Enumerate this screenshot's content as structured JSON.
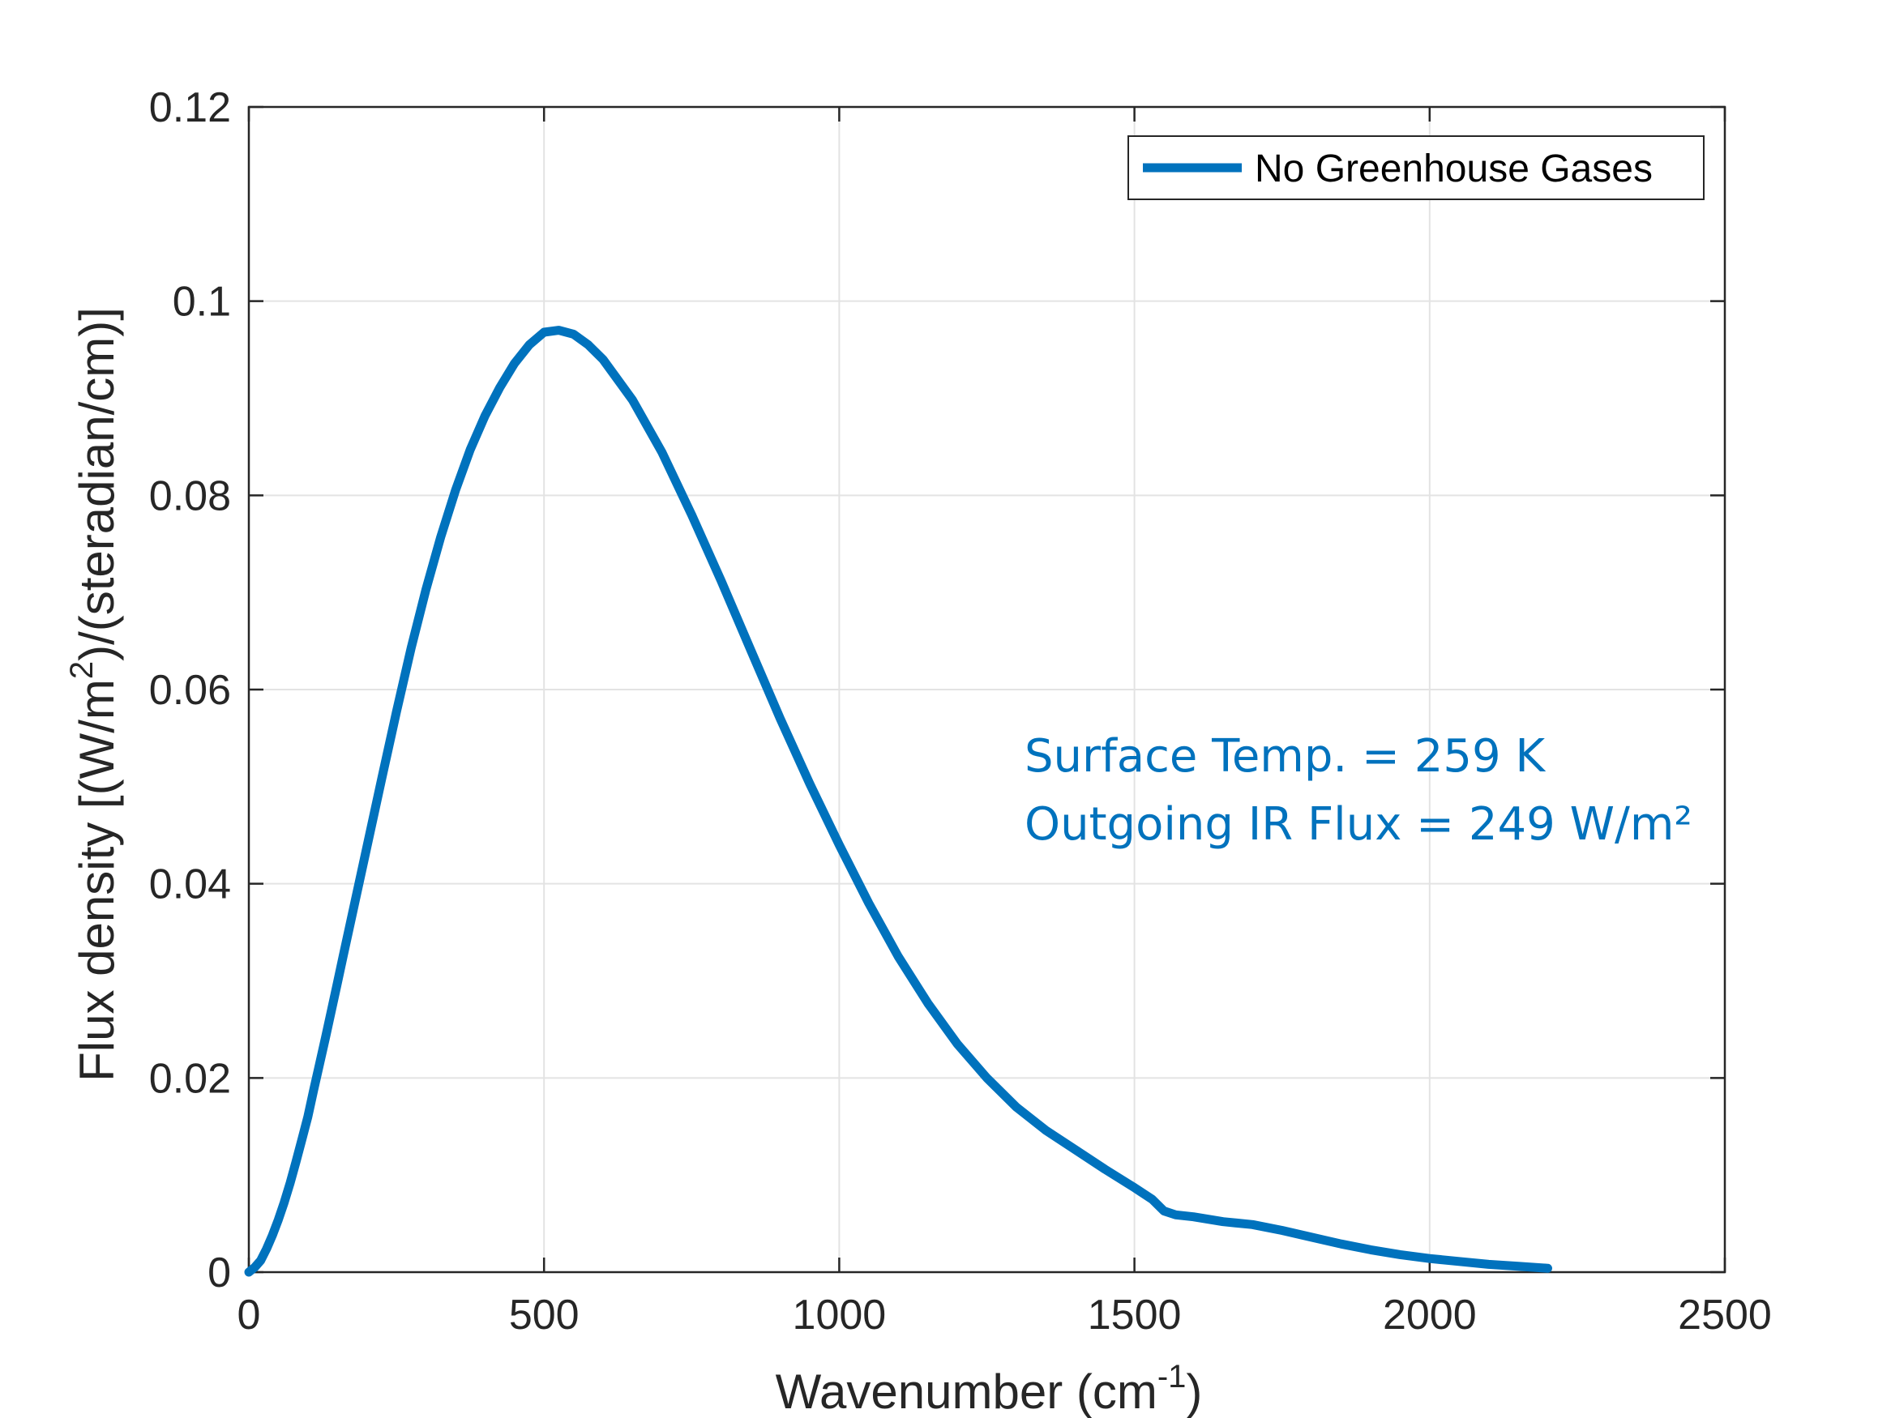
{
  "chart_data": {
    "type": "line",
    "xlabel": {
      "main": "Wavenumber (cm",
      "sup": "-1",
      "end": ")"
    },
    "ylabel": {
      "main": "Flux density [(W/m",
      "sup": "2",
      "end": ")/(steradian/cm)]"
    },
    "xlim": [
      0,
      2500
    ],
    "ylim": [
      0,
      0.12
    ],
    "xticks": [
      0,
      500,
      1000,
      1500,
      2000,
      2500
    ],
    "xtick_labels": [
      "0",
      "500",
      "1000",
      "1500",
      "2000",
      "2500"
    ],
    "yticks": [
      0,
      0.02,
      0.04,
      0.06,
      0.08,
      0.1,
      0.12
    ],
    "ytick_labels": [
      "0",
      "0.02",
      "0.04",
      "0.06",
      "0.08",
      "0.1",
      "0.12"
    ],
    "grid": true,
    "legend_position": "top-right",
    "annotations": [
      "Surface Temp. = 259 K",
      "Outgoing IR Flux = 249 W/m²"
    ],
    "colors": {
      "series": "#0072BD",
      "grid": "#e3e3e3",
      "axis": "#262626",
      "annotation": "#0072BD"
    },
    "series": [
      {
        "name": "No Greenhouse Gases",
        "x": [
          0,
          10,
          20,
          30,
          40,
          50,
          60,
          70,
          80,
          90,
          100,
          110,
          120,
          130,
          140,
          150,
          160,
          170,
          180,
          190,
          200,
          225,
          250,
          275,
          300,
          325,
          350,
          375,
          400,
          425,
          450,
          475,
          500,
          525,
          550,
          575,
          600,
          650,
          700,
          750,
          800,
          850,
          900,
          950,
          1000,
          1050,
          1100,
          1150,
          1200,
          1250,
          1300,
          1350,
          1400,
          1450,
          1500,
          1530,
          1550,
          1570,
          1600,
          1650,
          1700,
          1750,
          1800,
          1850,
          1900,
          1950,
          2000,
          2050,
          2100,
          2150,
          2200
        ],
        "y": [
          0,
          0.0005,
          0.0012,
          0.0024,
          0.0038,
          0.0054,
          0.0072,
          0.0092,
          0.0114,
          0.0137,
          0.016,
          0.0188,
          0.0215,
          0.0242,
          0.027,
          0.0298,
          0.0326,
          0.0354,
          0.0382,
          0.041,
          0.0438,
          0.0508,
          0.0577,
          0.0643,
          0.0703,
          0.0757,
          0.0805,
          0.0847,
          0.0882,
          0.0911,
          0.0936,
          0.0955,
          0.0968,
          0.097,
          0.0966,
          0.0955,
          0.094,
          0.0898,
          0.0844,
          0.078,
          0.0712,
          0.0641,
          0.057,
          0.0503,
          0.044,
          0.038,
          0.0325,
          0.0277,
          0.0235,
          0.02,
          0.017,
          0.0146,
          0.0126,
          0.0106,
          0.0087,
          0.0075,
          0.0063,
          0.0059,
          0.0057,
          0.0052,
          0.0049,
          0.0043,
          0.0036,
          0.0029,
          0.0023,
          0.0018,
          0.0014,
          0.0011,
          0.0008,
          0.0006,
          0.0004
        ]
      }
    ]
  }
}
